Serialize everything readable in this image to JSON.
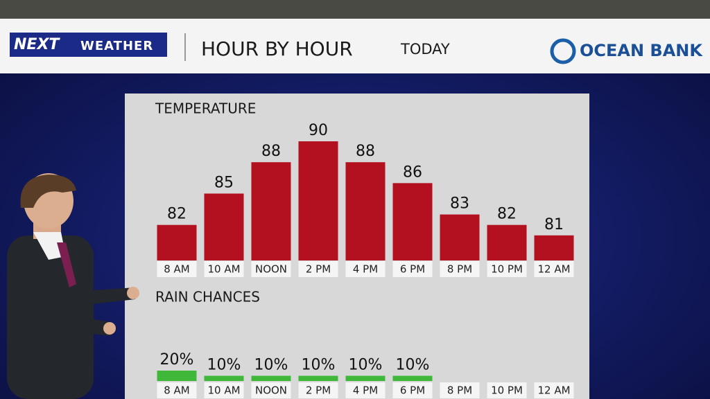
{
  "header": {
    "brand": "NEXT",
    "brand_sub": "WEATHER",
    "title": "HOUR BY HOUR",
    "subtitle": "TODAY",
    "sponsor": "OCEAN BANK"
  },
  "chart_data": [
    {
      "type": "bar",
      "title": "TEMPERATURE",
      "categories": [
        "8 AM",
        "10 AM",
        "NOON",
        "2 PM",
        "4 PM",
        "6 PM",
        "8 PM",
        "10 PM",
        "12 AM"
      ],
      "values": [
        82,
        85,
        88,
        90,
        88,
        86,
        83,
        82,
        81
      ],
      "color": "#b3111f",
      "ylim": [
        78.6,
        90
      ]
    },
    {
      "type": "bar",
      "title": "RAIN CHANCES",
      "categories": [
        "8 AM",
        "10 AM",
        "NOON",
        "2 PM",
        "4 PM",
        "6 PM",
        "8 PM",
        "10 PM",
        "12 AM"
      ],
      "values": [
        20,
        10,
        10,
        10,
        10,
        10,
        null,
        null,
        null
      ],
      "value_labels": [
        "20%",
        "10%",
        "10%",
        "10%",
        "10%",
        "10%",
        null,
        null,
        null
      ],
      "color": "#3fb83a",
      "ylim": [
        0,
        100
      ]
    }
  ]
}
